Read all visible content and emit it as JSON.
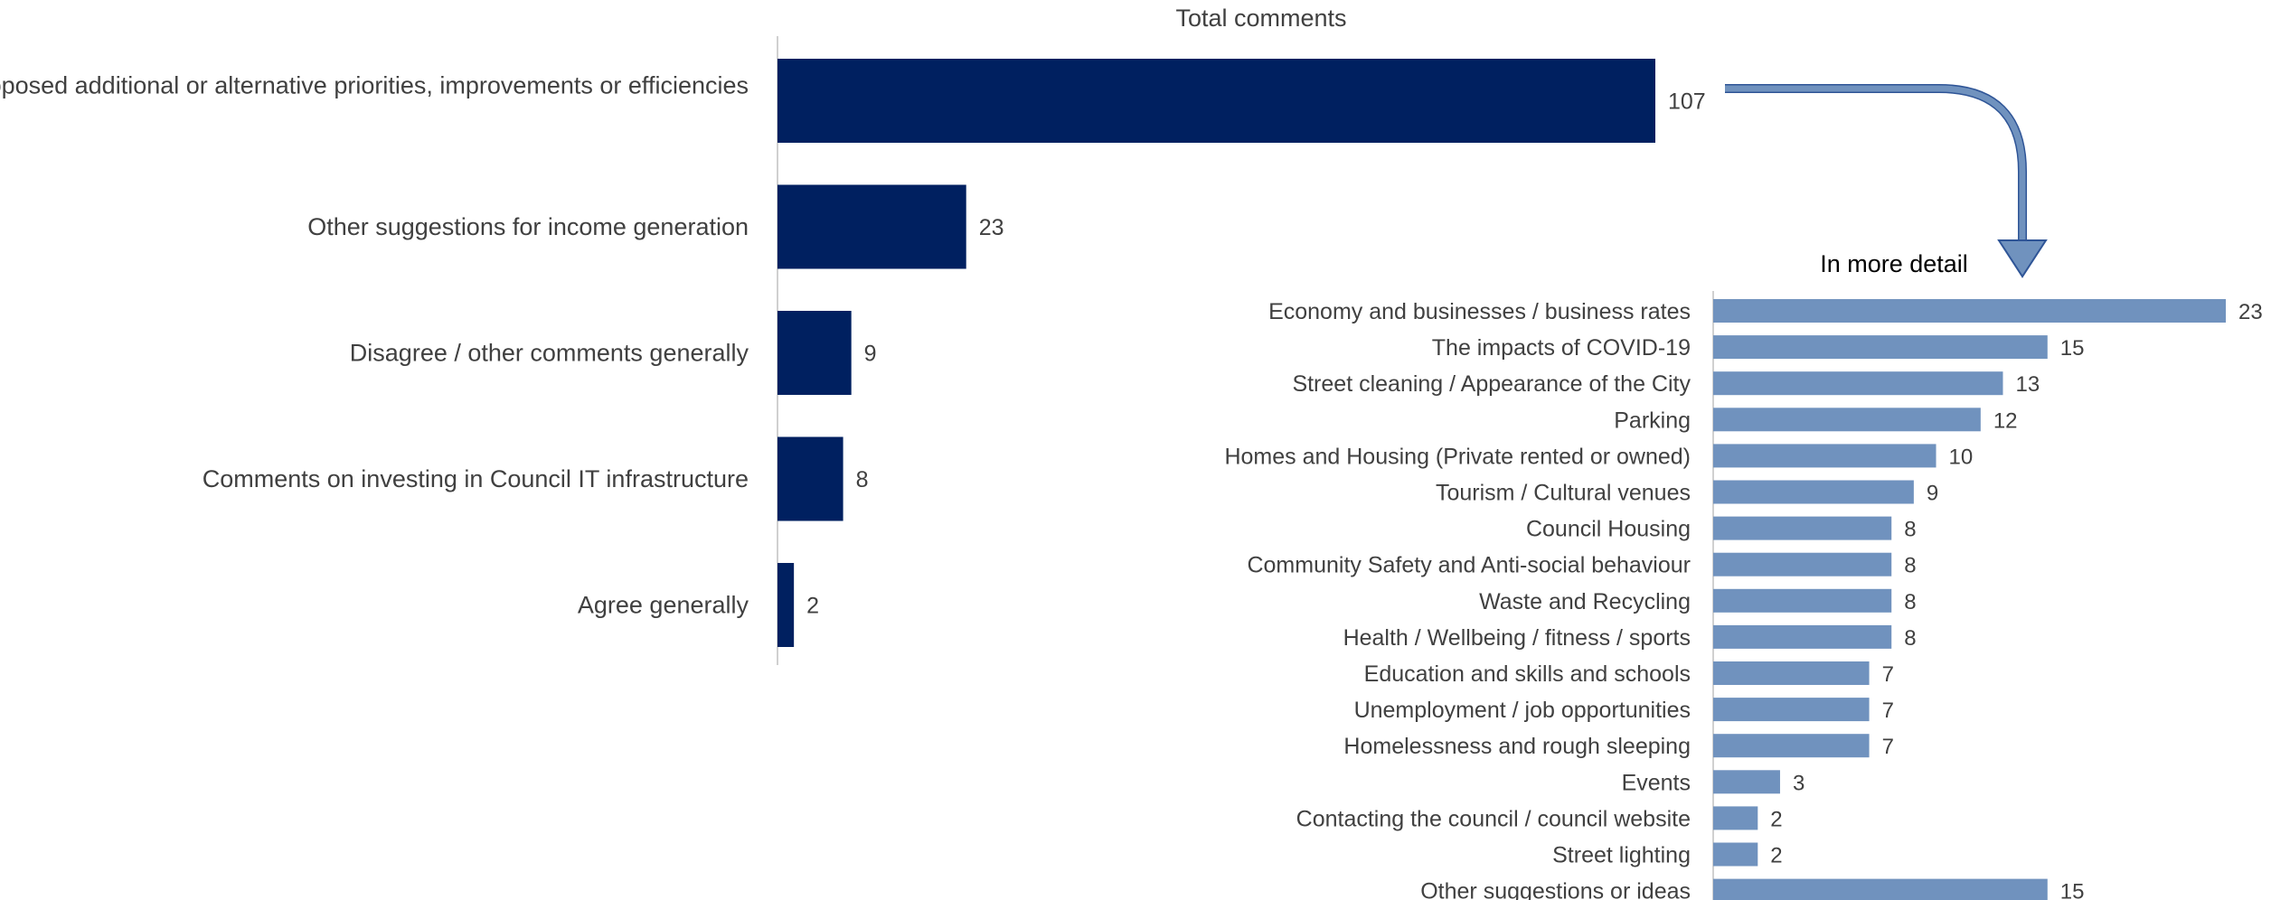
{
  "chart_data": [
    {
      "type": "bar",
      "orientation": "horizontal",
      "title": "Total comments",
      "categories": [
        "Proposed additional or alternative priorities, improvements or efficiencies",
        "Other suggestions for income generation",
        "Disagree / other comments generally",
        "Comments on investing in Council IT infrastructure",
        "Agree generally"
      ],
      "values": [
        107,
        23,
        9,
        8,
        2
      ],
      "xlim": [
        0,
        107
      ],
      "color": "#002060",
      "grid": false
    },
    {
      "type": "bar",
      "orientation": "horizontal",
      "title": "In more detail",
      "categories": [
        "Economy and businesses / business rates",
        "The impacts of COVID-19",
        "Street cleaning / Appearance of the City",
        "Parking",
        "Homes and Housing (Private rented or owned)",
        "Tourism / Cultural venues",
        "Council Housing",
        "Community Safety and Anti-social behaviour",
        "Waste and Recycling",
        "Health / Wellbeing / fitness / sports",
        "Education and skills and schools",
        "Unemployment / job opportunities",
        "Homelessness and rough sleeping",
        "Events",
        "Contacting the council / council website",
        "Street lighting",
        "Other suggestions or ideas"
      ],
      "values": [
        23,
        15,
        13,
        12,
        10,
        9,
        8,
        8,
        8,
        8,
        7,
        7,
        7,
        3,
        2,
        2,
        15
      ],
      "xlim": [
        0,
        23
      ],
      "color": "#7092be",
      "grid": false
    }
  ],
  "colors": {
    "arrow_fill": "#7092be",
    "arrow_stroke": "#2f5597"
  }
}
